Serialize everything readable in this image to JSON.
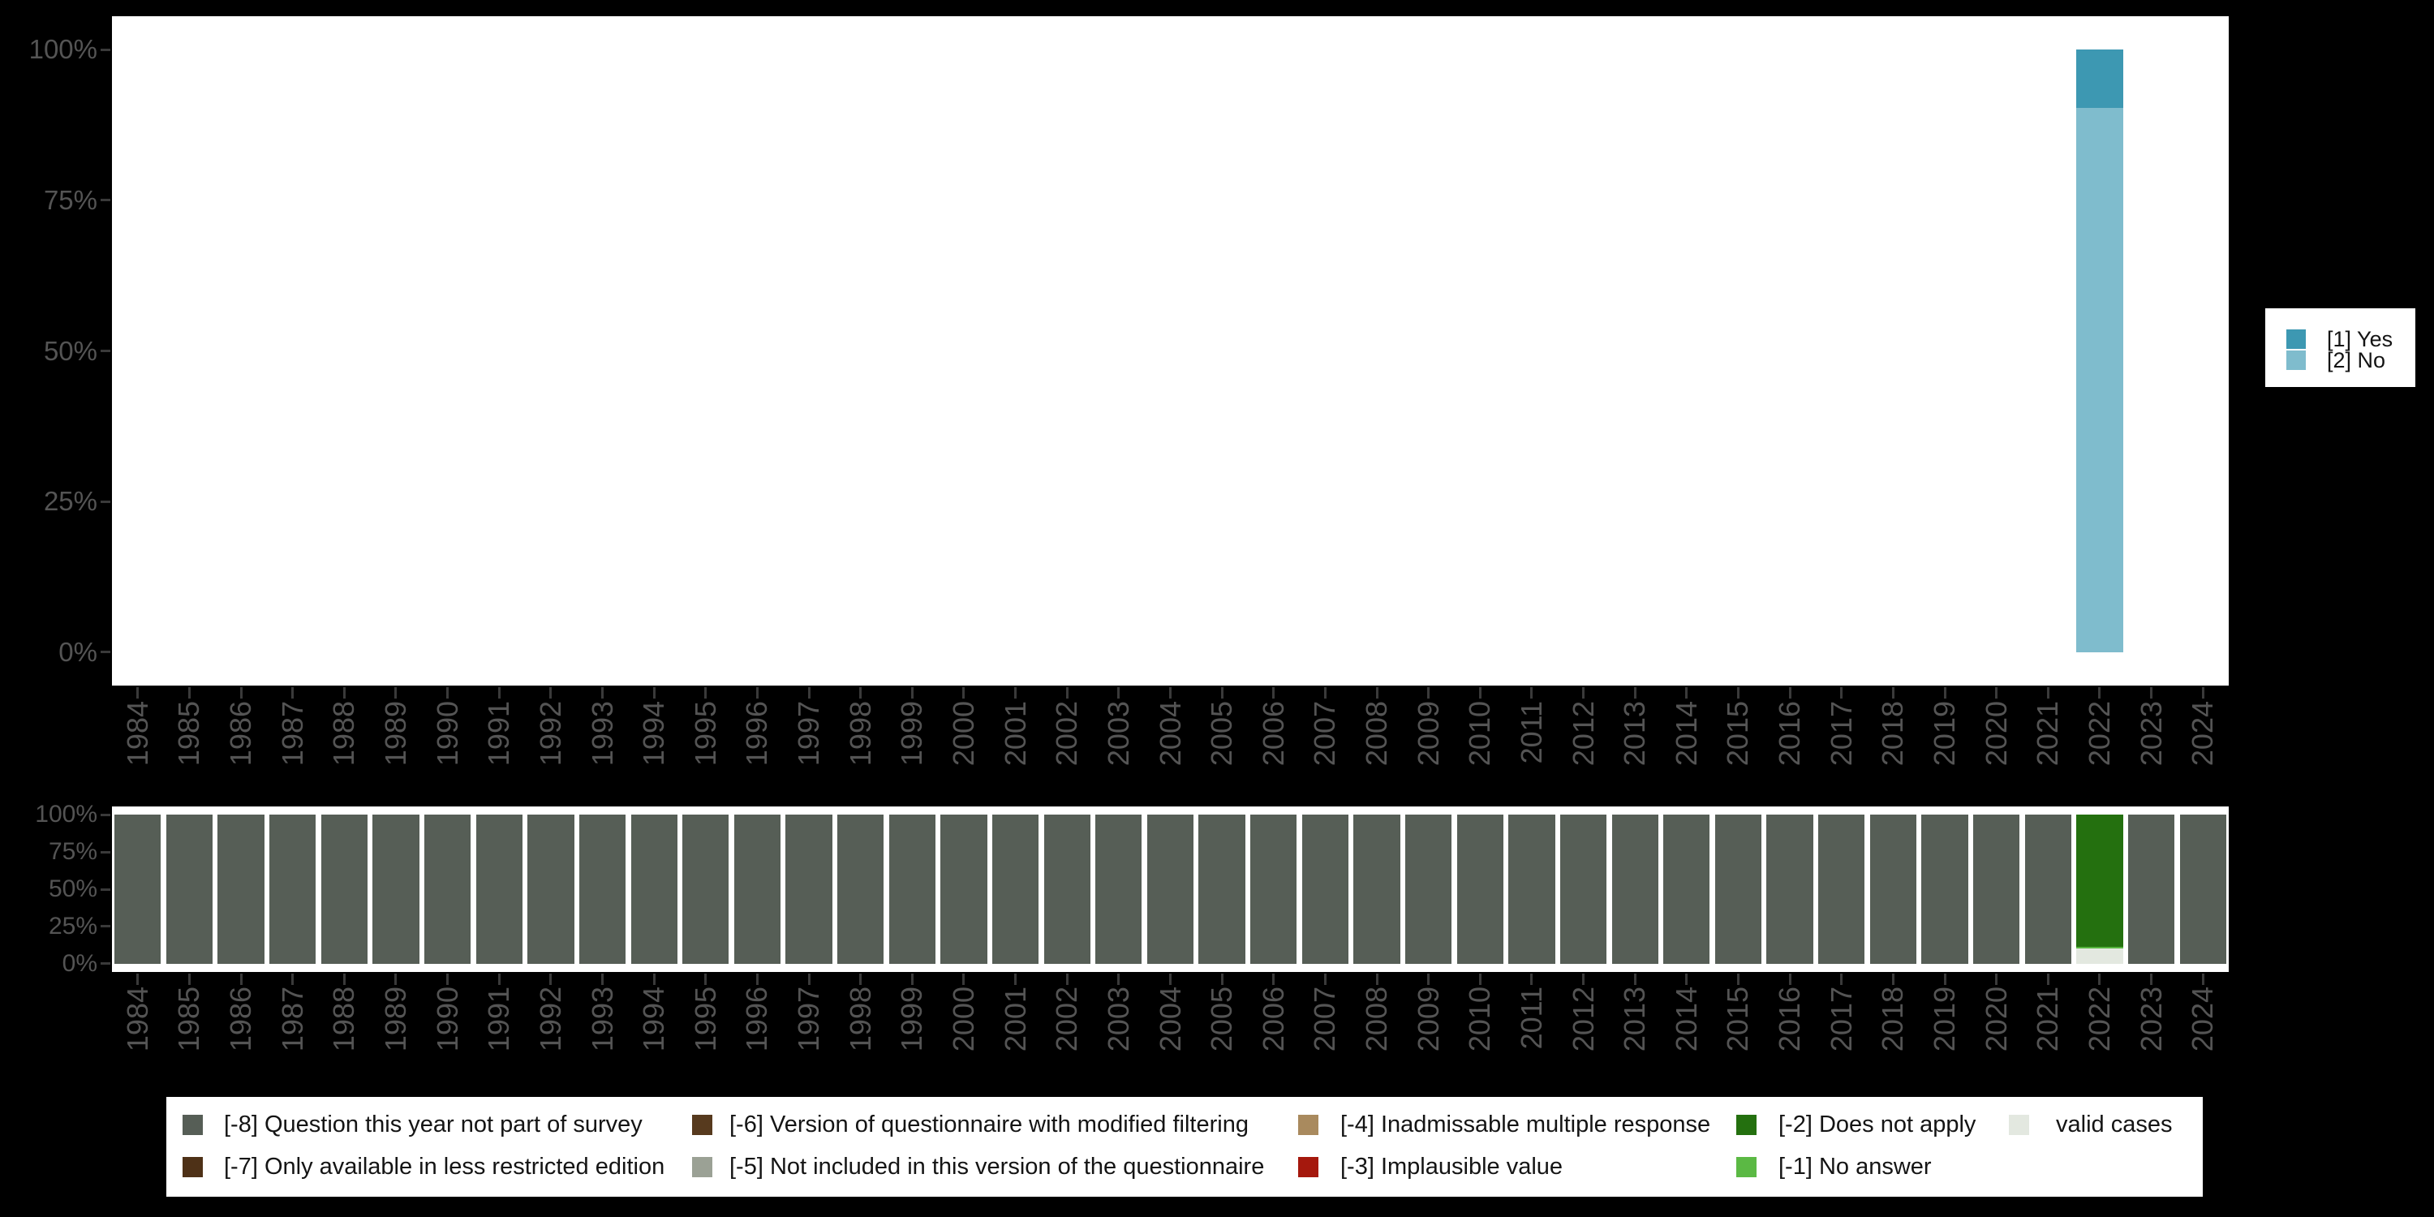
{
  "figure": {
    "background": "#000000",
    "plot_background": "#ffffff",
    "axis_text_color": "#545454",
    "tick_color": "#3a3a3a",
    "legend_background": "#ffffff",
    "legend_text_color": "#141414"
  },
  "chart_data": [
    {
      "id": "response-distribution",
      "type": "bar",
      "stacked": true,
      "unit": "percent",
      "grid": false,
      "ylim": [
        0,
        100
      ],
      "y_tick_labels": [
        "0%",
        "25%",
        "50%",
        "75%",
        "100%"
      ],
      "legend_position": "right",
      "categories": [
        "1984",
        "1985",
        "1986",
        "1987",
        "1988",
        "1989",
        "1990",
        "1991",
        "1992",
        "1993",
        "1994",
        "1995",
        "1996",
        "1997",
        "1998",
        "1999",
        "2000",
        "2001",
        "2002",
        "2003",
        "2004",
        "2005",
        "2006",
        "2007",
        "2008",
        "2009",
        "2010",
        "2011",
        "2012",
        "2013",
        "2014",
        "2015",
        "2016",
        "2017",
        "2018",
        "2019",
        "2020",
        "2021",
        "2022",
        "2023",
        "2024"
      ],
      "series": [
        {
          "name": "[1] Yes",
          "color": "#3d98b2",
          "values": [
            null,
            null,
            null,
            null,
            null,
            null,
            null,
            null,
            null,
            null,
            null,
            null,
            null,
            null,
            null,
            null,
            null,
            null,
            null,
            null,
            null,
            null,
            null,
            null,
            null,
            null,
            null,
            null,
            null,
            null,
            null,
            null,
            null,
            null,
            null,
            null,
            null,
            null,
            9.6,
            null,
            null
          ]
        },
        {
          "name": "[2] No",
          "color": "#7fbccd",
          "values": [
            null,
            null,
            null,
            null,
            null,
            null,
            null,
            null,
            null,
            null,
            null,
            null,
            null,
            null,
            null,
            null,
            null,
            null,
            null,
            null,
            null,
            null,
            null,
            null,
            null,
            null,
            null,
            null,
            null,
            null,
            null,
            null,
            null,
            null,
            null,
            null,
            null,
            null,
            90.4,
            null,
            null
          ]
        }
      ]
    },
    {
      "id": "missing-values-distribution",
      "type": "bar",
      "stacked": true,
      "unit": "percent",
      "grid": false,
      "ylim": [
        0,
        100
      ],
      "y_tick_labels": [
        "0%",
        "25%",
        "50%",
        "75%",
        "100%"
      ],
      "legend_position": "bottom",
      "categories": [
        "1984",
        "1985",
        "1986",
        "1987",
        "1988",
        "1989",
        "1990",
        "1991",
        "1992",
        "1993",
        "1994",
        "1995",
        "1996",
        "1997",
        "1998",
        "1999",
        "2000",
        "2001",
        "2002",
        "2003",
        "2004",
        "2005",
        "2006",
        "2007",
        "2008",
        "2009",
        "2010",
        "2011",
        "2012",
        "2013",
        "2014",
        "2015",
        "2016",
        "2017",
        "2018",
        "2019",
        "2020",
        "2021",
        "2022",
        "2023",
        "2024"
      ],
      "series": [
        {
          "name": "[-8] Question this year not part of survey",
          "color": "#565e56",
          "values": [
            100,
            100,
            100,
            100,
            100,
            100,
            100,
            100,
            100,
            100,
            100,
            100,
            100,
            100,
            100,
            100,
            100,
            100,
            100,
            100,
            100,
            100,
            100,
            100,
            100,
            100,
            100,
            100,
            100,
            100,
            100,
            100,
            100,
            100,
            100,
            100,
            100,
            100,
            null,
            100,
            100
          ]
        },
        {
          "name": "[-2] Does not apply",
          "color": "#24700f",
          "values": [
            null,
            null,
            null,
            null,
            null,
            null,
            null,
            null,
            null,
            null,
            null,
            null,
            null,
            null,
            null,
            null,
            null,
            null,
            null,
            null,
            null,
            null,
            null,
            null,
            null,
            null,
            null,
            null,
            null,
            null,
            null,
            null,
            null,
            null,
            null,
            null,
            null,
            null,
            88.9,
            null,
            null
          ]
        },
        {
          "name": "[-1] No answer",
          "color": "#56b53e",
          "values": [
            null,
            null,
            null,
            null,
            null,
            null,
            null,
            null,
            null,
            null,
            null,
            null,
            null,
            null,
            null,
            null,
            null,
            null,
            null,
            null,
            null,
            null,
            null,
            null,
            null,
            null,
            null,
            null,
            null,
            null,
            null,
            null,
            null,
            null,
            null,
            null,
            null,
            null,
            1.1,
            null,
            null
          ]
        },
        {
          "name": "valid cases",
          "color": "#e3e8e0",
          "values": [
            null,
            null,
            null,
            null,
            null,
            null,
            null,
            null,
            null,
            null,
            null,
            null,
            null,
            null,
            null,
            null,
            null,
            null,
            null,
            null,
            null,
            null,
            null,
            null,
            null,
            null,
            null,
            null,
            null,
            null,
            null,
            null,
            null,
            null,
            null,
            null,
            null,
            null,
            10.0,
            null,
            null
          ]
        }
      ]
    }
  ],
  "top_legend": {
    "items": [
      {
        "label": "[1] Yes",
        "color": "#3d98b2"
      },
      {
        "label": "[2] No",
        "color": "#7fbccd"
      }
    ]
  },
  "bottom_legend": {
    "columns": [
      [
        {
          "label": "[-8] Question this year not part of survey",
          "color": "#565e56"
        },
        {
          "label": "[-7] Only available in less restricted edition",
          "color": "#4e3117"
        }
      ],
      [
        {
          "label": "[-6] Version of questionnaire with modified filtering",
          "color": "#573a1e"
        },
        {
          "label": "[-5] Not included in this version of the questionnaire",
          "color": "#9ba195"
        }
      ],
      [
        {
          "label": "[-4] Inadmissable multiple response",
          "color": "#a98a5e"
        },
        {
          "label": "[-3] Implausible value",
          "color": "#a5180d"
        }
      ],
      [
        {
          "label": "[-2] Does not apply",
          "color": "#24700f"
        },
        {
          "label": "[-1] No answer",
          "color": "#5bb944"
        }
      ],
      [
        {
          "label": "valid cases",
          "color": "#e3e8e0"
        }
      ]
    ]
  }
}
